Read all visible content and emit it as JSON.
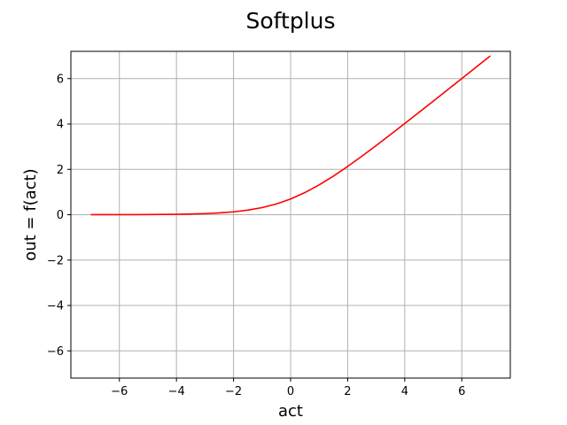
{
  "chart_data": {
    "type": "line",
    "title": "Softplus",
    "xlabel": "act",
    "ylabel": "out = f(act)",
    "xlim": [
      -7.7,
      7.7
    ],
    "ylim": [
      -7.2,
      7.2
    ],
    "xticks": [
      -6,
      -4,
      -2,
      0,
      2,
      4,
      6
    ],
    "yticks": [
      -6,
      -4,
      -2,
      0,
      2,
      4,
      6
    ],
    "xtick_labels": [
      "−6",
      "−4",
      "−2",
      "0",
      "2",
      "4",
      "6"
    ],
    "ytick_labels": [
      "−6",
      "−4",
      "−2",
      "0",
      "2",
      "4",
      "6"
    ],
    "grid": true,
    "series": [
      {
        "color": "#ff0000",
        "x": [
          -7,
          -6.5,
          -6,
          -5.5,
          -5,
          -4.5,
          -4,
          -3.5,
          -3,
          -2.5,
          -2,
          -1.5,
          -1,
          -0.5,
          0,
          0.5,
          1,
          1.5,
          2,
          2.5,
          3,
          3.5,
          4,
          4.5,
          5,
          5.5,
          6,
          6.5,
          7
        ],
        "y": [
          0.001,
          0.0015,
          0.0025,
          0.0041,
          0.0067,
          0.011,
          0.018,
          0.03,
          0.049,
          0.079,
          0.127,
          0.201,
          0.313,
          0.474,
          0.693,
          0.974,
          1.313,
          1.701,
          2.127,
          2.579,
          3.049,
          3.53,
          4.018,
          4.511,
          5.007,
          5.504,
          6.002,
          6.502,
          7.001
        ]
      }
    ]
  }
}
